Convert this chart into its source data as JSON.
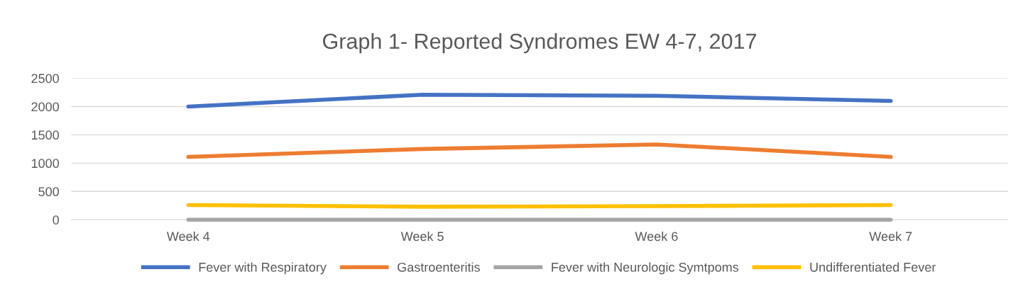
{
  "chart_data": {
    "type": "line",
    "title": "Graph 1- Reported Syndromes EW 4-7, 2017",
    "categories": [
      "Week 4",
      "Week 5",
      "Week 6",
      "Week 7"
    ],
    "series": [
      {
        "name": "Fever with Respiratory",
        "color": "#4472c4",
        "values": [
          2000,
          2210,
          2190,
          2100
        ]
      },
      {
        "name": "Gastroenteritis",
        "color": "#ed7d31",
        "values": [
          1110,
          1250,
          1330,
          1110
        ]
      },
      {
        "name": "Fever with Neurologic Symtpoms",
        "color": "#a5a5a5",
        "values": [
          0,
          0,
          0,
          0
        ]
      },
      {
        "name": "Undifferentiated Fever",
        "color": "#ffc000",
        "values": [
          260,
          230,
          240,
          260
        ]
      }
    ],
    "ylim": [
      0,
      2500
    ],
    "yticks": [
      0,
      500,
      1000,
      1500,
      2000,
      2500
    ],
    "grid": "y",
    "legend": "bottom",
    "marker": "none",
    "line_style": "solid"
  }
}
